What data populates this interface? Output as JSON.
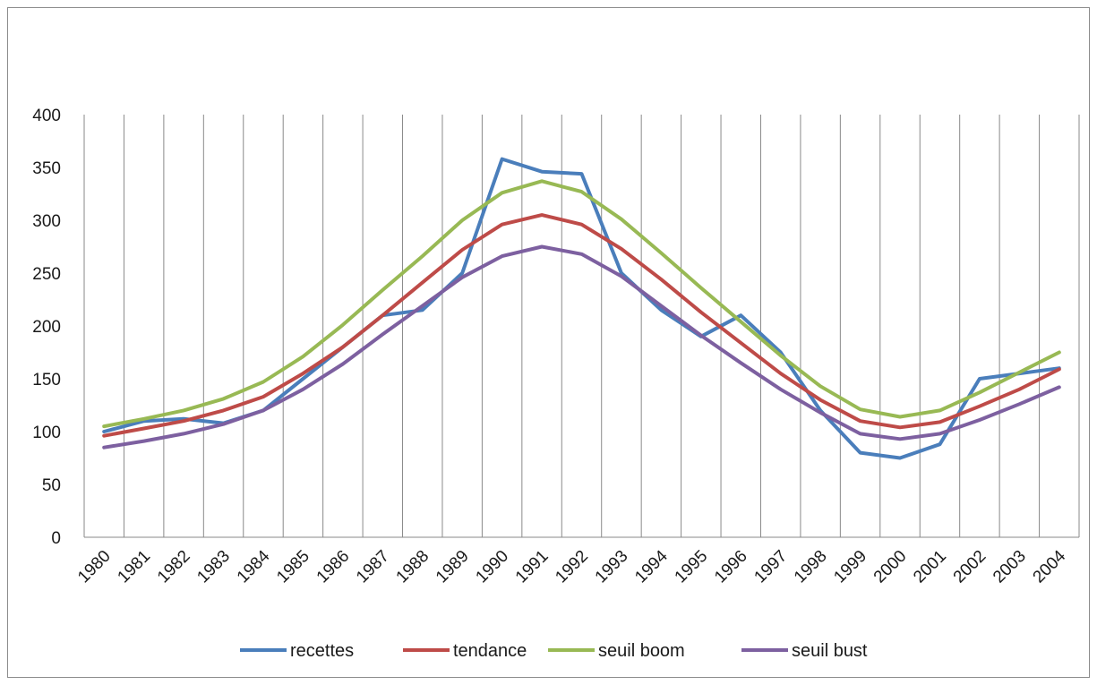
{
  "chart_data": {
    "type": "line",
    "title": "",
    "xlabel": "",
    "ylabel": "",
    "ylim": [
      0,
      400
    ],
    "yticks": [
      "0",
      "50",
      "100",
      "150",
      "200",
      "250",
      "300",
      "350",
      "400"
    ],
    "categories": [
      "1980",
      "1981",
      "1982",
      "1983",
      "1984",
      "1985",
      "1986",
      "1987",
      "1988",
      "1989",
      "1990",
      "1991",
      "1992",
      "1993",
      "1994",
      "1995",
      "1996",
      "1997",
      "1998",
      "1999",
      "2000",
      "2001",
      "2002",
      "2003",
      "2004"
    ],
    "grid": "vertical",
    "legend_position": "bottom",
    "series": [
      {
        "name": "recettes",
        "color": "#4a7ebb",
        "values": [
          100,
          110,
          112,
          108,
          120,
          150,
          180,
          210,
          215,
          250,
          358,
          346,
          344,
          250,
          215,
          190,
          210,
          175,
          120,
          80,
          75,
          88,
          150,
          155,
          160
        ]
      },
      {
        "name": "tendance",
        "color": "#be4b48",
        "values": [
          96,
          103,
          110,
          120,
          133,
          155,
          180,
          210,
          241,
          272,
          296,
          305,
          296,
          273,
          244,
          213,
          184,
          155,
          130,
          110,
          104,
          109,
          124,
          140,
          159
        ]
      },
      {
        "name": "seuil boom",
        "color": "#98b954",
        "values": [
          105,
          112,
          120,
          131,
          147,
          171,
          201,
          234,
          266,
          300,
          326,
          337,
          327,
          301,
          269,
          236,
          204,
          172,
          143,
          121,
          114,
          120,
          137,
          156,
          175
        ]
      },
      {
        "name": "seuil bust",
        "color": "#7d60a0",
        "values": [
          85,
          91,
          98,
          107,
          120,
          140,
          164,
          192,
          219,
          246,
          266,
          275,
          268,
          247,
          219,
          191,
          165,
          140,
          118,
          98,
          93,
          98,
          111,
          126,
          142
        ]
      }
    ]
  }
}
